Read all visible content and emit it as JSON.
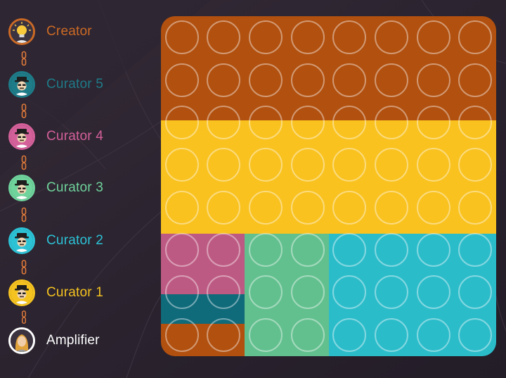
{
  "roles": [
    {
      "label": "Creator",
      "color": "#cc6a25",
      "border": "#cc6a25",
      "avatar": "lightbulb-icon"
    },
    {
      "label": "Curator 5",
      "color": "#1e7b88",
      "border": "#1e7b88",
      "avatar": "curator-avatar-icon"
    },
    {
      "label": "Curator 4",
      "color": "#d4609a",
      "border": "#d4609a",
      "avatar": "curator-avatar-icon"
    },
    {
      "label": "Curator 3",
      "color": "#6fd39c",
      "border": "#6fd39c",
      "avatar": "curator-avatar-icon"
    },
    {
      "label": "Curator 2",
      "color": "#2cc2d6",
      "border": "#2cc2d6",
      "avatar": "curator-avatar-icon"
    },
    {
      "label": "Curator 1",
      "color": "#f5c320",
      "border": "#f5c320",
      "avatar": "curator-avatar-icon"
    },
    {
      "label": "Amplifier",
      "color": "#ffffff",
      "border": "#ffffff",
      "avatar": "amplifier-avatar-icon"
    }
  ],
  "grid": {
    "columns": 8,
    "rows": 8,
    "circle_color": "rgba(255,255,255,0.42)",
    "allocation": [
      {
        "role": "Creator",
        "color": "#b1500f",
        "rows": [
          0,
          2.45
        ],
        "cols": [
          0,
          8
        ]
      },
      {
        "role": "Curator 1",
        "color": "#f9c21f",
        "rows": [
          2.45,
          5.12
        ],
        "cols": [
          0,
          8
        ]
      },
      {
        "role": "Curator 4",
        "color": "#bd5a83",
        "rows": [
          5.12,
          6.55
        ],
        "cols": [
          0,
          2
        ]
      },
      {
        "role": "Curator 5",
        "color": "#0f6a7a",
        "rows": [
          6.55,
          7.23
        ],
        "cols": [
          0,
          2
        ]
      },
      {
        "role": "Creator",
        "color": "#b1500f",
        "rows": [
          7.23,
          8
        ],
        "cols": [
          0,
          2
        ]
      },
      {
        "role": "Curator 3",
        "color": "#62c08e",
        "rows": [
          5.12,
          8
        ],
        "cols": [
          2,
          4
        ]
      },
      {
        "role": "Curator 2",
        "color": "#2bbcca",
        "rows": [
          5.12,
          8
        ],
        "cols": [
          4,
          8
        ]
      }
    ]
  }
}
